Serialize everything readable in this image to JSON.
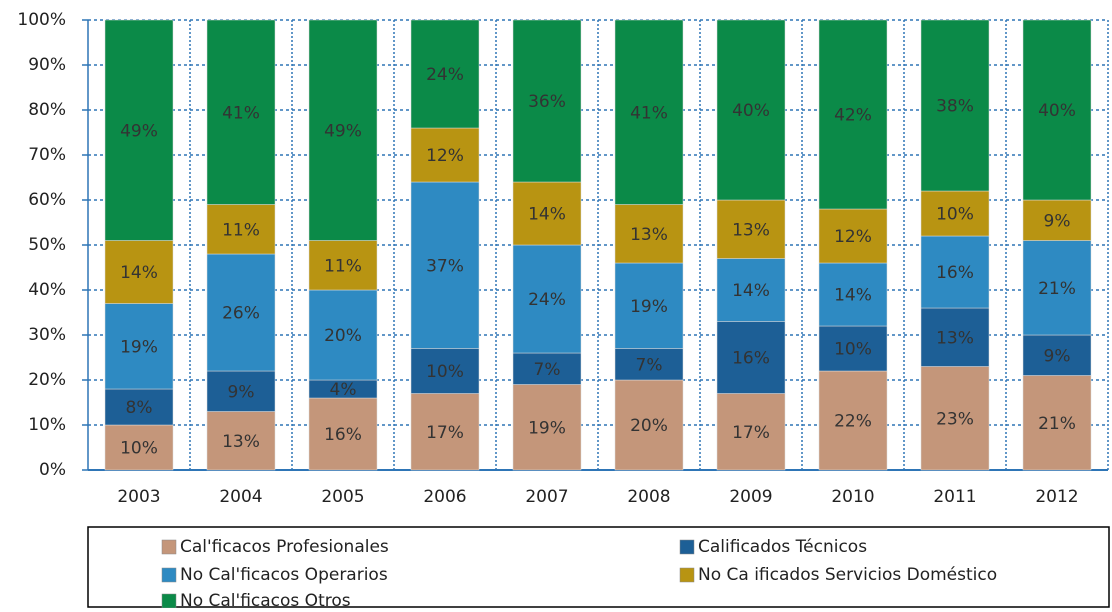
{
  "chart_data": {
    "type": "stacked_bar_100",
    "categories": [
      "2003",
      "2004",
      "2005",
      "2006",
      "2007",
      "2008",
      "2009",
      "2010",
      "2011",
      "2012"
    ],
    "series": [
      {
        "name": "Cal'ficacos Profesionales",
        "color": "#c4967a",
        "values": [
          10,
          13,
          16,
          17,
          19,
          20,
          17,
          22,
          23,
          21
        ],
        "value_labels": [
          "10%",
          "13%",
          "16%",
          "17%",
          "19%",
          "20%",
          "17%",
          "22%",
          "23%",
          "21%"
        ]
      },
      {
        "name": "Calificados Técnicos",
        "color": "#1d5f96",
        "values": [
          8,
          9,
          4,
          10,
          7,
          7,
          16,
          10,
          13,
          9
        ],
        "value_labels": [
          "8%",
          "9%",
          "4%",
          "10%",
          "7%",
          "7%",
          "16%",
          "10%",
          "13%",
          "9%"
        ]
      },
      {
        "name": "No Cal'ficacos Operarios",
        "color": "#2e8ac2",
        "values": [
          19,
          26,
          20,
          37,
          24,
          19,
          14,
          14,
          16,
          21
        ],
        "value_labels": [
          "19%",
          "26%",
          "20%",
          "37%",
          "24%",
          "19%",
          "14%",
          "14%",
          "16%",
          "21%"
        ]
      },
      {
        "name": "No Ca ificados Servicios Doméstico",
        "color": "#b89412",
        "values": [
          14,
          11,
          11,
          12,
          14,
          13,
          13,
          12,
          10,
          9
        ],
        "value_labels": [
          "14%",
          "11%",
          "11%",
          "12%",
          "14%",
          "13%",
          "13%",
          "12%",
          "10%",
          "9%"
        ]
      },
      {
        "name": "No Cal'ficacos Otros",
        "color": "#0b8a48",
        "values": [
          49,
          41,
          49,
          24,
          36,
          41,
          40,
          42,
          38,
          40
        ],
        "value_labels": [
          "49%",
          "41%",
          "49%",
          "24%",
          "36%",
          "41%",
          "40%",
          "42%",
          "38%",
          "40%"
        ]
      }
    ],
    "ylim": [
      0,
      100
    ],
    "yticks": [
      {
        "value": 0,
        "label": "0%"
      },
      {
        "value": 10,
        "label": "10%"
      },
      {
        "value": 20,
        "label": "20%"
      },
      {
        "value": 30,
        "label": "30%"
      },
      {
        "value": 40,
        "label": "40%"
      },
      {
        "value": 50,
        "label": "50%"
      },
      {
        "value": 60,
        "label": "60%"
      },
      {
        "value": 70,
        "label": "70%"
      },
      {
        "value": 80,
        "label": "80%"
      },
      {
        "value": 90,
        "label": "90%"
      },
      {
        "value": 100,
        "label": "100%"
      }
    ],
    "grid": true,
    "legend": "bottom"
  }
}
